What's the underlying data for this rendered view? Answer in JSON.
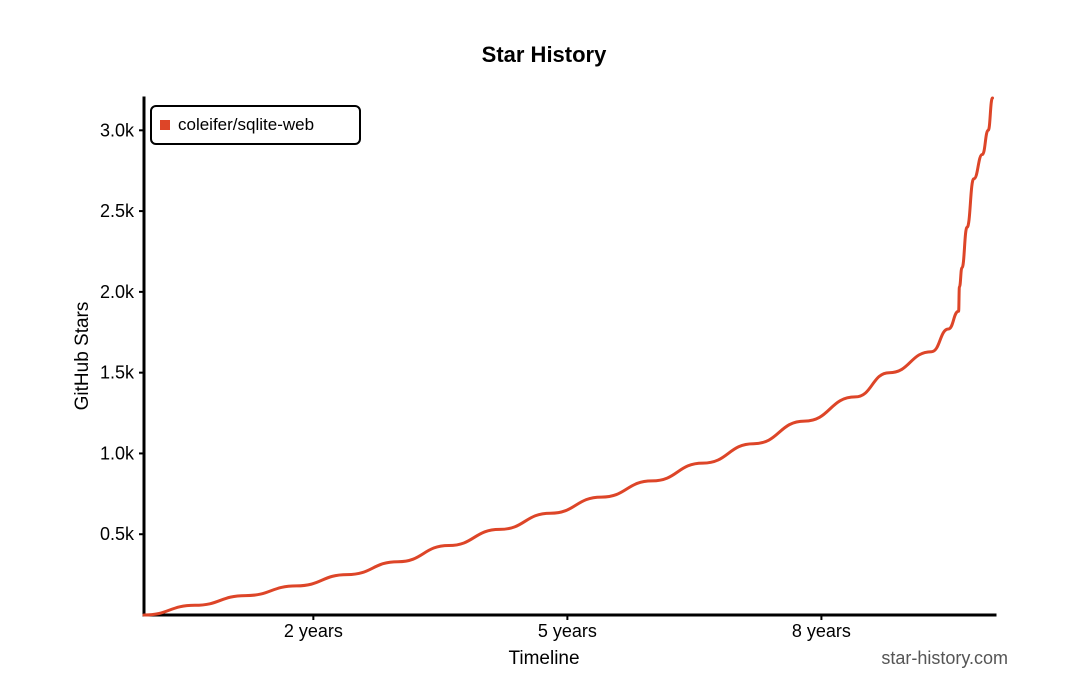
{
  "chart_data": {
    "type": "line",
    "title": "Star History",
    "xlabel": "Timeline",
    "ylabel": "GitHub Stars",
    "x_unit": "years",
    "xlim": [
      0,
      10.05
    ],
    "ylim": [
      0,
      3200
    ],
    "x_ticks": [
      {
        "value": 2,
        "label": "2 years"
      },
      {
        "value": 5,
        "label": "5 years"
      },
      {
        "value": 8,
        "label": "8 years"
      }
    ],
    "y_ticks": [
      {
        "value": 500,
        "label": "0.5k"
      },
      {
        "value": 1000,
        "label": "1.0k"
      },
      {
        "value": 1500,
        "label": "1.5k"
      },
      {
        "value": 2000,
        "label": "2.0k"
      },
      {
        "value": 2500,
        "label": "2.5k"
      },
      {
        "value": 3000,
        "label": "3.0k"
      }
    ],
    "grid": false,
    "legend": {
      "position": "top-left"
    },
    "series": [
      {
        "name": "coleifer/sqlite-web",
        "color": "#dd4528",
        "x": [
          0,
          0.6,
          1.2,
          1.8,
          2.4,
          3.0,
          3.6,
          4.2,
          4.8,
          5.4,
          6.0,
          6.6,
          7.2,
          7.8,
          8.4,
          8.8,
          9.3,
          9.5,
          9.62,
          9.63,
          9.66,
          9.72,
          9.8,
          9.9,
          9.97,
          10.02
        ],
        "y": [
          0,
          60,
          120,
          180,
          250,
          330,
          430,
          530,
          630,
          730,
          830,
          940,
          1060,
          1200,
          1350,
          1500,
          1630,
          1770,
          1880,
          2030,
          2150,
          2400,
          2700,
          2850,
          3000,
          3200
        ]
      }
    ],
    "watermark": "star-history.com"
  }
}
